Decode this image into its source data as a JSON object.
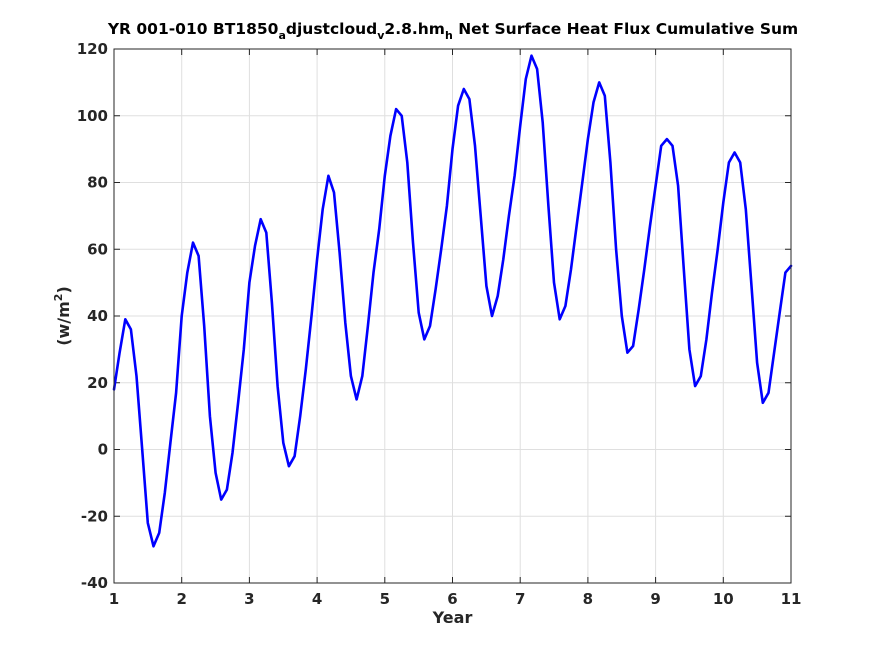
{
  "chart_data": {
    "type": "line",
    "title": {
      "parts": [
        {
          "text": "YR 001-010 BT1850",
          "sub": false
        },
        {
          "text": "a",
          "sub": true
        },
        {
          "text": "djustcloud",
          "sub": false
        },
        {
          "text": "v",
          "sub": true
        },
        {
          "text": "2.8.hm",
          "sub": false
        },
        {
          "text": "h",
          "sub": true
        },
        {
          "text": " Net Surface Heat Flux  Cumulative Sum",
          "sub": false
        }
      ]
    },
    "xlabel": "Year",
    "ylabel": "(w/m",
    "ylabel_sup": "2",
    "ylabel_close": ")",
    "xlim": [
      1,
      11
    ],
    "ylim": [
      -40,
      120
    ],
    "xticks": [
      1,
      2,
      3,
      4,
      5,
      6,
      7,
      8,
      9,
      10,
      11
    ],
    "yticks": [
      -40,
      -20,
      0,
      20,
      40,
      60,
      80,
      100,
      120
    ],
    "grid": true,
    "line_color": "#0000ff",
    "series": [
      {
        "x": [
          1.0,
          1.083,
          1.167,
          1.25,
          1.333,
          1.417,
          1.5,
          1.583,
          1.667,
          1.75,
          1.833,
          1.917,
          2.0,
          2.083,
          2.167,
          2.25,
          2.333,
          2.417,
          2.5,
          2.583,
          2.667,
          2.75,
          2.833,
          2.917,
          3.0,
          3.083,
          3.167,
          3.25,
          3.333,
          3.417,
          3.5,
          3.583,
          3.667,
          3.75,
          3.833,
          3.917,
          4.0,
          4.083,
          4.167,
          4.25,
          4.333,
          4.417,
          4.5,
          4.583,
          4.667,
          4.75,
          4.833,
          4.917,
          5.0,
          5.083,
          5.167,
          5.25,
          5.333,
          5.417,
          5.5,
          5.583,
          5.667,
          5.75,
          5.833,
          5.917,
          6.0,
          6.083,
          6.167,
          6.25,
          6.333,
          6.417,
          6.5,
          6.583,
          6.667,
          6.75,
          6.833,
          6.917,
          7.0,
          7.083,
          7.167,
          7.25,
          7.333,
          7.417,
          7.5,
          7.583,
          7.667,
          7.75,
          7.833,
          7.917,
          8.0,
          8.083,
          8.167,
          8.25,
          8.333,
          8.417,
          8.5,
          8.583,
          8.667,
          8.75,
          8.833,
          8.917,
          9.0,
          9.083,
          9.167,
          9.25,
          9.333,
          9.417,
          9.5,
          9.583,
          9.667,
          9.75,
          9.833,
          9.917,
          10.0,
          10.083,
          10.167,
          10.25,
          10.333,
          10.417,
          10.5,
          10.583,
          10.667,
          10.75,
          10.833,
          10.917,
          11.0
        ],
        "y": [
          18,
          29,
          39,
          36,
          22,
          0,
          -22,
          -29,
          -25,
          -13,
          2,
          17,
          40,
          53,
          62,
          58,
          37,
          10,
          -7,
          -15,
          -12,
          -1,
          14,
          30,
          50,
          61,
          69,
          65,
          44,
          19,
          2,
          -5,
          -2,
          10,
          24,
          40,
          57,
          72,
          82,
          77,
          59,
          38,
          22,
          15,
          22,
          37,
          53,
          66,
          82,
          94,
          102,
          100,
          86,
          62,
          41,
          33,
          37,
          48,
          60,
          73,
          90,
          103,
          108,
          105,
          91,
          70,
          49,
          40,
          46,
          57,
          70,
          82,
          97,
          111,
          118,
          114,
          98,
          73,
          50,
          39,
          43,
          54,
          67,
          80,
          93,
          104,
          110,
          106,
          86,
          60,
          40,
          29,
          31,
          42,
          54,
          67,
          79,
          91,
          93,
          91,
          79,
          54,
          30,
          19,
          22,
          33,
          47,
          60,
          74,
          86,
          89,
          86,
          72,
          49,
          26,
          14,
          17,
          29,
          41,
          53,
          55
        ]
      }
    ]
  }
}
